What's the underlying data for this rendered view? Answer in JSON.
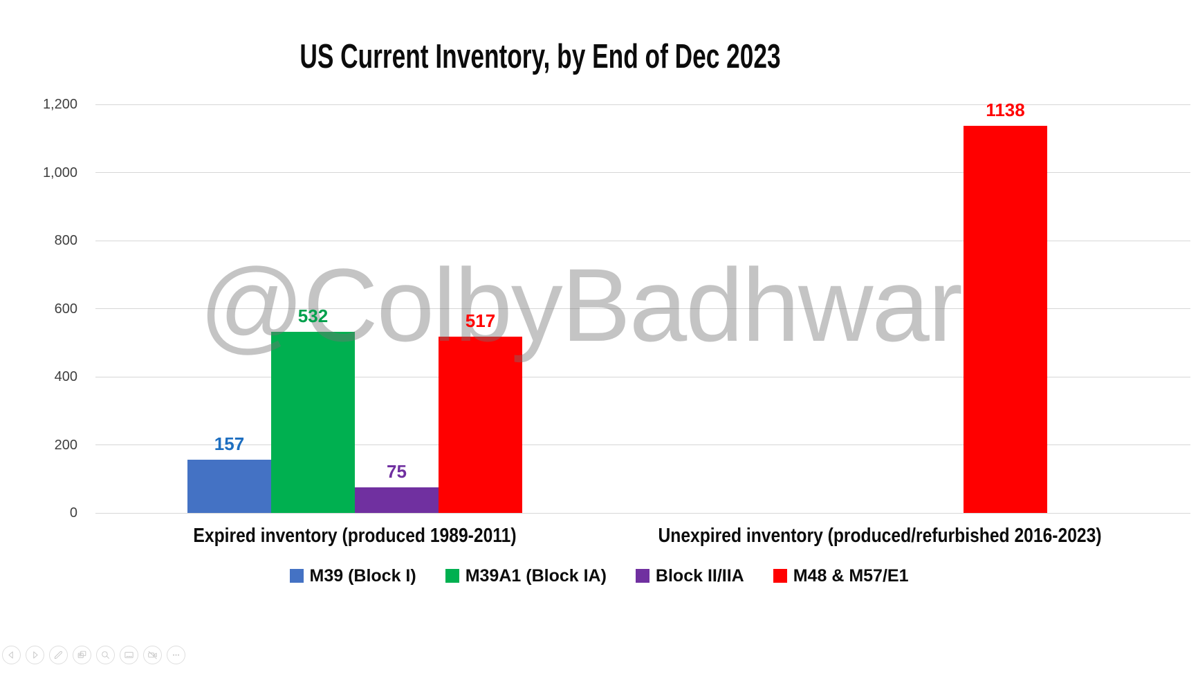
{
  "page": {
    "background": "#FFFFFF"
  },
  "chart_data": {
    "type": "bar",
    "title": "US Current Inventory, by End of Dec 2023",
    "categories": [
      "Expired inventory (produced 1989-2011)",
      "Unexpired inventory (produced/refurbished 2016-2023)"
    ],
    "series": [
      {
        "name": "M39 (Block I)",
        "color": "#4472C4",
        "label_color": "#1D6EC0",
        "values": [
          157,
          null
        ]
      },
      {
        "name": "M39A1 (Block IA)",
        "color": "#00B050",
        "label_color": "#00A04C",
        "values": [
          532,
          null
        ]
      },
      {
        "name": "Block II/IIA",
        "color": "#7030A0",
        "label_color": "#7030A0",
        "values": [
          75,
          null
        ]
      },
      {
        "name": "M48 & M57/E1",
        "color": "#FF0000",
        "label_color": "#FF0000",
        "values": [
          517,
          1138
        ]
      }
    ],
    "data_labels": true,
    "y_tick_labels": [
      "0",
      "200",
      "400",
      "600",
      "800",
      "1,000",
      "1,200"
    ],
    "y_tick_interval": 200,
    "ylim": [
      0,
      1200
    ],
    "grid": true,
    "legend_position": "bottom",
    "grid_color": "#D6D6D6",
    "tick_color": "#3F3F3F"
  },
  "watermark": {
    "text": "@ColbyBadhwar"
  },
  "toolbar": {
    "buttons": [
      "previous-slide",
      "next-slide",
      "pen",
      "see-all-slides",
      "zoom",
      "captions",
      "camera-off",
      "more-options"
    ]
  }
}
